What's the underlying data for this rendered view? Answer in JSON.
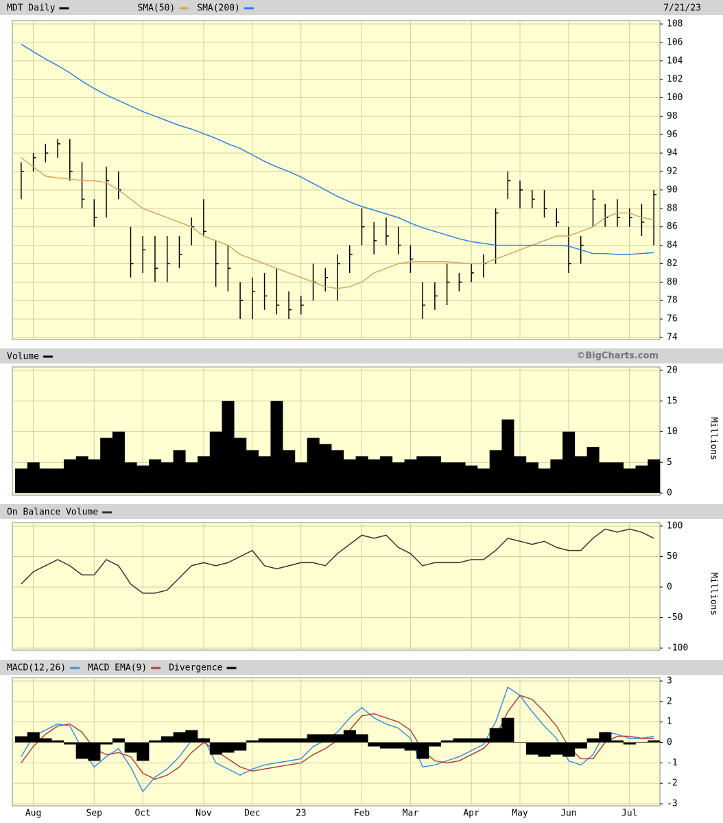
{
  "chart_data": {
    "type": "stock",
    "date": "7/21/23",
    "categories": [
      null,
      "Aug",
      null,
      null,
      null,
      null,
      "Sep",
      null,
      null,
      null,
      "Oct",
      null,
      null,
      null,
      null,
      "Nov",
      null,
      null,
      null,
      "Dec",
      null,
      null,
      null,
      "23",
      null,
      null,
      null,
      null,
      "Feb",
      null,
      null,
      null,
      "Mar",
      null,
      null,
      null,
      null,
      "Apr",
      null,
      null,
      null,
      "May",
      null,
      null,
      null,
      "Jun",
      null,
      null,
      null,
      null,
      "Jul",
      null,
      null
    ],
    "panels": [
      {
        "type": "ohlc",
        "ylim": [
          74,
          108
        ],
        "yticks": [
          74,
          76,
          78,
          80,
          82,
          84,
          86,
          88,
          90,
          92,
          94,
          96,
          98,
          100,
          102,
          104,
          106,
          108
        ],
        "grid": true,
        "series": [
          {
            "name": "MDT Daily",
            "color": "#000000",
            "high": [
              93,
              94,
              95,
              95.5,
              95.5,
              93,
              89,
              92.5,
              92,
              86,
              85,
              85,
              85,
              85,
              87,
              89,
              84.5,
              84,
              80,
              80.5,
              81,
              81.5,
              79,
              78.5,
              82,
              81.5,
              83,
              84,
              88,
              86.5,
              87,
              86,
              84,
              80,
              80,
              82,
              81,
              82,
              83,
              88,
              92,
              91,
              90,
              90,
              88,
              86,
              85,
              90,
              88.5,
              89,
              88,
              88.5,
              90
            ],
            "low": [
              89,
              92,
              93,
              93.5,
              91,
              88,
              86,
              87,
              89,
              80.5,
              81,
              80,
              80,
              81.5,
              84,
              85,
              79.5,
              79,
              76,
              76,
              77,
              76.5,
              76,
              76.5,
              78,
              79,
              78,
              81,
              84,
              83,
              84,
              83,
              81,
              76,
              77,
              77.5,
              79,
              80,
              80.5,
              82,
              89,
              88,
              88,
              87,
              86,
              81,
              82,
              86,
              86,
              86,
              86,
              85,
              84
            ],
            "close": [
              92,
              93.5,
              94,
              95,
              92,
              89,
              87,
              91,
              90,
              82,
              83.5,
              81.5,
              82,
              83,
              86,
              85.5,
              82,
              81.5,
              78,
              79,
              78.5,
              77.5,
              77,
              77.5,
              80,
              80.5,
              82,
              83,
              86,
              84.5,
              85,
              84,
              82.5,
              77.5,
              78.5,
              80,
              80,
              81,
              82,
              87.5,
              91,
              90,
              89,
              88,
              86.5,
              82,
              84,
              89,
              87,
              87,
              87,
              86.5,
              89.5
            ]
          },
          {
            "name": "SMA(50)",
            "color": "#d9a55a",
            "values": [
              93.5,
              92.5,
              91.5,
              91.3,
              91.2,
              91,
              91,
              90.8,
              90,
              89,
              88,
              87.5,
              87,
              86.5,
              86,
              85,
              84.5,
              84,
              83,
              82.5,
              82,
              81.5,
              81,
              80.5,
              80,
              79.5,
              79.3,
              79.5,
              80,
              81,
              81.5,
              82,
              82.2,
              82.2,
              82.2,
              82.2,
              82.1,
              82,
              82,
              82.5,
              83,
              83.5,
              84,
              84.5,
              85,
              85,
              85.5,
              86,
              87,
              87.5,
              87.5,
              87,
              86.8
            ]
          },
          {
            "name": "SMA(200)",
            "color": "#2f80e4",
            "values": [
              105.8,
              105,
              104.2,
              103.5,
              102.7,
              101.8,
              101,
              100.3,
              99.7,
              99.1,
              98.5,
              98,
              97.5,
              97,
              96.6,
              96.1,
              95.6,
              95,
              94.5,
              93.8,
              93.1,
              92.5,
              92,
              91.4,
              90.7,
              90,
              89.3,
              88.7,
              88.2,
              87.8,
              87.4,
              87,
              86.4,
              85.9,
              85.5,
              85.1,
              84.7,
              84.4,
              84.2,
              84,
              84,
              84,
              84,
              84,
              84,
              83.9,
              83.5,
              83.1,
              83.1,
              83,
              83,
              83.1,
              83.2
            ]
          }
        ]
      },
      {
        "type": "bar",
        "ylim": [
          0,
          20
        ],
        "yticks": [
          0,
          5,
          10,
          15,
          20
        ],
        "grid": true,
        "y_label": "Millions",
        "credit": "©BigCharts.com",
        "series": [
          {
            "name": "Volume",
            "color": "#000000",
            "values": [
              4,
              5,
              4,
              4,
              5.5,
              6,
              5.5,
              9,
              10,
              5,
              4.5,
              5.5,
              5,
              7,
              5,
              6,
              10,
              15,
              9,
              7,
              6,
              15,
              7,
              5,
              9,
              8,
              7,
              5.5,
              6,
              5.5,
              6,
              5,
              5.5,
              6,
              6,
              5,
              5,
              4.5,
              4,
              7,
              12,
              6,
              5,
              4,
              5.5,
              10,
              6,
              7.5,
              5,
              5,
              4,
              4.5,
              5.5
            ]
          }
        ]
      },
      {
        "type": "line",
        "ylim": [
          -100,
          100
        ],
        "yticks": [
          -100,
          -50,
          0,
          50,
          100
        ],
        "grid": true,
        "y_label": "Millions",
        "series": [
          {
            "name": "On Balance Volume",
            "color": "#333333",
            "values": [
              5,
              25,
              35,
              45,
              35,
              20,
              20,
              45,
              35,
              5,
              -10,
              -10,
              -5,
              15,
              35,
              40,
              35,
              40,
              50,
              60,
              35,
              30,
              35,
              40,
              40,
              35,
              55,
              70,
              85,
              80,
              85,
              65,
              55,
              35,
              40,
              40,
              40,
              45,
              45,
              60,
              80,
              75,
              70,
              75,
              65,
              60,
              60,
              80,
              95,
              90,
              95,
              90,
              80
            ]
          }
        ]
      },
      {
        "type": "line",
        "ylim": [
          -3,
          3
        ],
        "yticks": [
          -3,
          -2,
          -1,
          0,
          1,
          2,
          3
        ],
        "grid": true,
        "series": [
          {
            "name": "MACD(12,26)",
            "color": "#3b8ee8",
            "values": [
              -0.7,
              0.3,
              0.6,
              0.9,
              0.8,
              -0.3,
              -1.2,
              -0.7,
              -0.3,
              -1.2,
              -2.4,
              -1.7,
              -1.3,
              -0.7,
              0.1,
              0.2,
              -1.0,
              -1.3,
              -1.6,
              -1.3,
              -1.1,
              -1.0,
              -0.9,
              -0.8,
              -0.2,
              0.1,
              0.5,
              1.2,
              1.7,
              1.2,
              0.9,
              0.7,
              0.2,
              -1.2,
              -1.1,
              -0.9,
              -0.7,
              -0.4,
              -0.1,
              1.0,
              2.7,
              2.3,
              1.5,
              0.8,
              0.2,
              -0.9,
              -1.1,
              -0.6,
              0.5,
              0.4,
              0.2,
              0.2,
              0.3
            ]
          },
          {
            "name": "MACD EMA(9)",
            "color": "#b04040",
            "values": [
              -1.0,
              -0.2,
              0.4,
              0.8,
              0.9,
              0.5,
              -0.3,
              -0.6,
              -0.5,
              -0.7,
              -1.5,
              -1.8,
              -1.6,
              -1.2,
              -0.5,
              0.0,
              -0.4,
              -0.8,
              -1.2,
              -1.4,
              -1.3,
              -1.2,
              -1.1,
              -1.0,
              -0.6,
              -0.3,
              0.1,
              0.6,
              1.3,
              1.4,
              1.2,
              1.0,
              0.6,
              -0.4,
              -0.9,
              -1.0,
              -0.9,
              -0.6,
              -0.3,
              0.3,
              1.5,
              2.3,
              2.1,
              1.5,
              0.8,
              -0.2,
              -0.8,
              -0.8,
              0.0,
              0.3,
              0.3,
              0.2,
              0.2
            ]
          },
          {
            "name": "Divergence",
            "color": "#000000",
            "type": "bar",
            "values": [
              0.3,
              0.5,
              0.2,
              0.1,
              -0.1,
              -0.8,
              -0.9,
              -0.1,
              0.2,
              -0.5,
              -0.9,
              0.1,
              0.3,
              0.5,
              0.6,
              0.2,
              -0.6,
              -0.5,
              -0.4,
              0.1,
              0.2,
              0.2,
              0.2,
              0.2,
              0.4,
              0.4,
              0.4,
              0.6,
              0.4,
              -0.2,
              -0.3,
              -0.3,
              -0.4,
              -0.8,
              -0.2,
              0.1,
              0.2,
              0.2,
              0.2,
              0.7,
              1.2,
              0.0,
              -0.6,
              -0.7,
              -0.6,
              -0.7,
              -0.3,
              0.2,
              0.5,
              0.1,
              -0.1,
              0.0,
              0.1
            ]
          }
        ]
      }
    ]
  }
}
